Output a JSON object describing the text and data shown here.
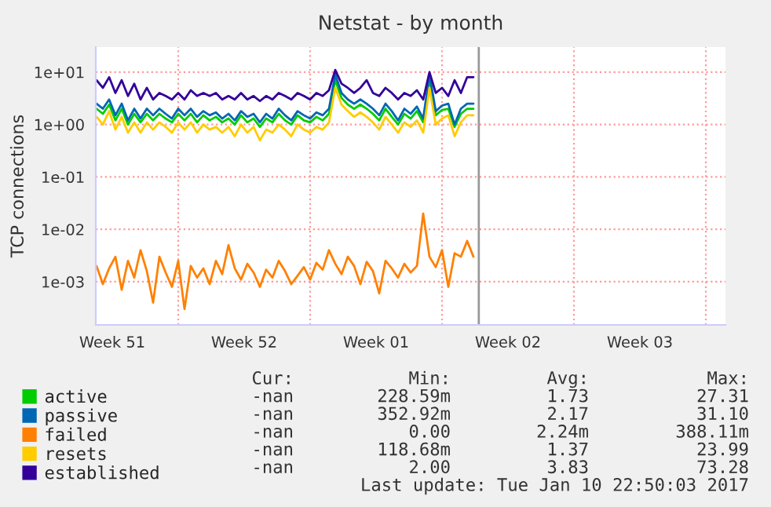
{
  "chart_data": {
    "type": "line",
    "title": "Netstat - by month",
    "ylabel": "TCP connections",
    "x": [
      "2016-12-21T16:00",
      "2016-12-22T00:00",
      "2016-12-22T08:00",
      "2016-12-22T16:00",
      "2016-12-23T00:00",
      "2016-12-23T08:00",
      "2016-12-23T16:00",
      "2016-12-24T00:00",
      "2016-12-24T08:00",
      "2016-12-24T16:00",
      "2016-12-25T00:00",
      "2016-12-25T08:00",
      "2016-12-25T16:00",
      "2016-12-26T00:00",
      "2016-12-26T08:00",
      "2016-12-26T16:00",
      "2016-12-27T00:00",
      "2016-12-27T08:00",
      "2016-12-27T16:00",
      "2016-12-28T00:00",
      "2016-12-28T08:00",
      "2016-12-28T16:00",
      "2016-12-29T00:00",
      "2016-12-29T08:00",
      "2016-12-29T16:00",
      "2016-12-30T00:00",
      "2016-12-30T08:00",
      "2016-12-30T16:00",
      "2016-12-31T00:00",
      "2016-12-31T08:00",
      "2016-12-31T16:00",
      "2017-01-01T00:00",
      "2017-01-01T08:00",
      "2017-01-01T16:00",
      "2017-01-02T00:00",
      "2017-01-02T08:00",
      "2017-01-02T16:00",
      "2017-01-03T00:00",
      "2017-01-03T08:00",
      "2017-01-03T16:00",
      "2017-01-04T00:00",
      "2017-01-04T08:00",
      "2017-01-04T16:00",
      "2017-01-05T00:00",
      "2017-01-05T08:00",
      "2017-01-05T16:00",
      "2017-01-06T00:00",
      "2017-01-06T08:00",
      "2017-01-06T16:00",
      "2017-01-07T00:00",
      "2017-01-07T08:00",
      "2017-01-07T16:00",
      "2017-01-08T00:00",
      "2017-01-08T08:00",
      "2017-01-08T16:00",
      "2017-01-09T00:00",
      "2017-01-09T08:00",
      "2017-01-09T16:00",
      "2017-01-10T00:00",
      "2017-01-10T08:00",
      "2017-01-10T16:00"
    ],
    "series": [
      {
        "name": "active",
        "color": "#00cc00",
        "values": [
          2,
          1.6,
          2.4,
          1.2,
          2,
          1,
          1.6,
          1.1,
          1.6,
          1.2,
          1.6,
          1.3,
          1.1,
          1.6,
          1.2,
          1.6,
          1.1,
          1.5,
          1.2,
          1.4,
          1.1,
          1.3,
          1,
          1.5,
          1.1,
          1.3,
          0.9,
          1.3,
          1.1,
          1.6,
          1.2,
          1,
          1.5,
          1.2,
          1.1,
          1.4,
          1.2,
          1.6,
          7,
          3.2,
          2.4,
          2,
          2.4,
          2,
          1.6,
          1.2,
          2,
          1.4,
          1,
          1.6,
          1.3,
          1.8,
          1.1,
          7,
          1.5,
          1.9,
          2,
          0.9,
          1.6,
          2,
          2
        ]
      },
      {
        "name": "passive",
        "color": "#0066b3",
        "values": [
          2.5,
          2,
          3,
          1.5,
          2.5,
          1.2,
          2,
          1.3,
          2,
          1.5,
          2,
          1.6,
          1.3,
          2,
          1.5,
          2,
          1.4,
          1.8,
          1.5,
          1.7,
          1.3,
          1.6,
          1.2,
          1.8,
          1.4,
          1.6,
          1.1,
          1.6,
          1.3,
          2,
          1.5,
          1.2,
          1.8,
          1.5,
          1.3,
          1.7,
          1.5,
          2,
          9,
          4,
          3,
          2.5,
          3,
          2.5,
          2,
          1.5,
          2.5,
          1.8,
          1.2,
          2,
          1.6,
          2.2,
          1.3,
          9,
          1.8,
          2.3,
          2.5,
          1,
          2,
          2.5,
          2.5
        ]
      },
      {
        "name": "failed",
        "color": "#ff8000",
        "values": [
          0.002,
          0.0009,
          0.0018,
          0.003,
          0.0007,
          0.0025,
          0.0012,
          0.004,
          0.0016,
          0.0004,
          0.003,
          0.0015,
          0.0008,
          0.0025,
          0.0003,
          0.002,
          0.0012,
          0.0018,
          0.0009,
          0.0025,
          0.0014,
          0.005,
          0.0018,
          0.0011,
          0.0022,
          0.0015,
          0.0008,
          0.0017,
          0.0012,
          0.0025,
          0.0016,
          0.0009,
          0.0013,
          0.0019,
          0.0011,
          0.0023,
          0.0017,
          0.004,
          0.0022,
          0.0014,
          0.003,
          0.002,
          0.0009,
          0.0024,
          0.0016,
          0.0006,
          0.0025,
          0.0018,
          0.0012,
          0.0022,
          0.0015,
          0.002,
          0.02,
          0.003,
          0.0019,
          0.004,
          0.0008,
          0.0035,
          0.003,
          0.006,
          0.003
        ]
      },
      {
        "name": "resets",
        "color": "#ffcc00",
        "values": [
          1.4,
          1,
          1.8,
          0.8,
          1.4,
          0.7,
          1.1,
          0.7,
          1.1,
          0.8,
          1.1,
          0.9,
          0.7,
          1.1,
          0.8,
          1.1,
          0.7,
          1,
          0.8,
          0.9,
          0.7,
          0.9,
          0.6,
          1,
          0.7,
          0.9,
          0.5,
          0.8,
          0.7,
          1,
          0.8,
          0.6,
          1,
          0.8,
          0.7,
          0.9,
          0.8,
          1.1,
          5,
          2.4,
          1.8,
          1.4,
          1.7,
          1.4,
          1.1,
          0.8,
          1.4,
          1,
          0.7,
          1.1,
          0.9,
          1.2,
          0.7,
          5,
          1,
          1.3,
          1.5,
          0.6,
          1.1,
          1.5,
          1.5
        ]
      },
      {
        "name": "established",
        "color": "#330099",
        "values": [
          7,
          5,
          8,
          4,
          7,
          3.5,
          6,
          3,
          5,
          3,
          4,
          3.5,
          3,
          4,
          3,
          4.5,
          3.5,
          4,
          3.5,
          4,
          3,
          3.5,
          3,
          4,
          3,
          3.5,
          2.8,
          3.5,
          3,
          4,
          3.5,
          3,
          4,
          3.5,
          3,
          4,
          3.5,
          4.5,
          11,
          6,
          5,
          4,
          5,
          7,
          4,
          3.5,
          5,
          4,
          3,
          4,
          3.5,
          4.5,
          3,
          10,
          4,
          5,
          3.5,
          7,
          4,
          8,
          8
        ]
      }
    ],
    "log": "y",
    "ylim": [
      0.00015,
      30
    ],
    "yticks": [
      {
        "value": 0.001,
        "label": "1e-03"
      },
      {
        "value": 0.01,
        "label": "1e-02"
      },
      {
        "value": 0.1,
        "label": "1e-01"
      },
      {
        "value": 1,
        "label": "1e+00"
      },
      {
        "value": 10,
        "label": "1e+01"
      }
    ],
    "xlim": [
      "2016-12-21T15:00",
      "2017-01-24T01:00"
    ],
    "xticks": [
      {
        "value": "2016-12-22T12:00",
        "label": "Week 51"
      },
      {
        "value": "2016-12-26",
        "label": null
      },
      {
        "value": "2016-12-29T12:00",
        "label": "Week 52"
      },
      {
        "value": "2017-01-02",
        "label": null
      },
      {
        "value": "2017-01-05T12:00",
        "label": "Week 01"
      },
      {
        "value": "2017-01-09",
        "label": null
      },
      {
        "value": "2017-01-12T12:00",
        "label": "Week 02"
      },
      {
        "value": "2017-01-16",
        "label": null
      },
      {
        "value": "2017-01-19T12:00",
        "label": "Week 03"
      },
      {
        "value": "2017-01-23",
        "label": null
      }
    ],
    "ref_lines": [
      {
        "axis": "x",
        "value": "2017-01-10T22:50",
        "color": "#999999"
      }
    ],
    "grid": true,
    "legend": "bottom",
    "marker": "none",
    "line_style": "solid",
    "annotations": [
      "Cur:",
      "Min:",
      "Avg:",
      "Max:",
      "-nan",
      "228.59m",
      "1.73",
      "27.31",
      "-nan",
      "352.92m",
      "2.17",
      "31.10",
      "-nan",
      "0.00",
      "2.24m",
      "388.11m",
      "-nan",
      "118.68m",
      "1.37",
      "23.99",
      "-nan",
      "2.00",
      "3.83",
      "73.28",
      "Last update: Tue Jan 10 22:50:03 2017"
    ]
  }
}
